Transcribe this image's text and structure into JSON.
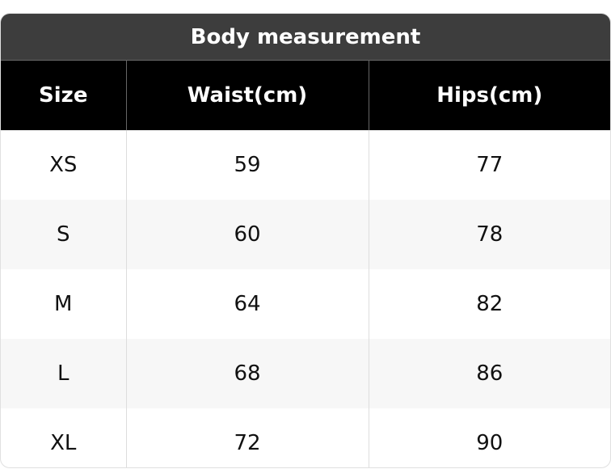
{
  "title": "Body measurement",
  "headers": [
    "Size",
    "Waist(cm)",
    "Hips(cm)"
  ],
  "rows": [
    [
      "XS",
      "59",
      "77"
    ],
    [
      "S",
      "60",
      "78"
    ],
    [
      "M",
      "64",
      "82"
    ],
    [
      "L",
      "68",
      "86"
    ],
    [
      "XL",
      "72",
      "90"
    ]
  ]
}
